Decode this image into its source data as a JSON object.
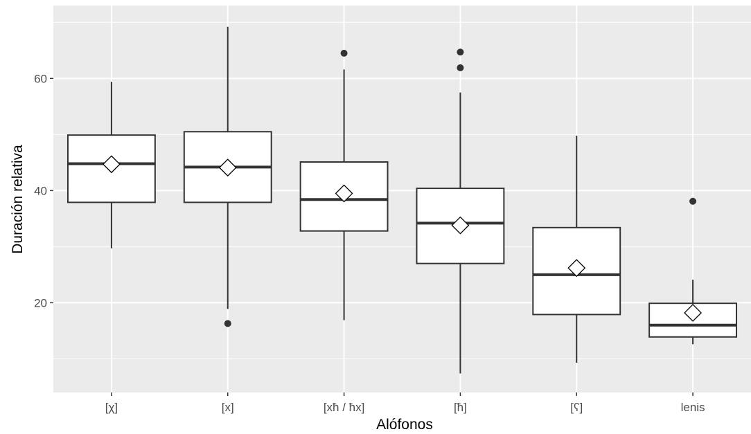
{
  "chart_data": {
    "type": "boxplot",
    "xlabel": "Alófonos",
    "ylabel": "Duración relativa",
    "ylim": [
      4,
      73
    ],
    "yticks": [
      20,
      40,
      60
    ],
    "grid": true,
    "legend": "none",
    "colors": {
      "panel": "#ebebeb",
      "grid": "#ffffff",
      "box_fill": "#ffffff",
      "line": "#333333"
    },
    "categories": [
      "[χ]",
      "[x]",
      "[xħ / ħx]",
      "[ħ]",
      "[ʕ]",
      "lenis"
    ],
    "boxes": [
      {
        "category": "[χ]",
        "whisker_low": 29.7,
        "q1": 37.9,
        "median": 44.8,
        "q3": 49.9,
        "whisker_high": 59.4,
        "mean": 44.7,
        "outliers": []
      },
      {
        "category": "[x]",
        "whisker_low": 18.9,
        "q1": 37.9,
        "median": 44.2,
        "q3": 50.5,
        "whisker_high": 69.2,
        "mean": 44.1,
        "outliers": [
          16.3
        ]
      },
      {
        "category": "[xħ / ħx]",
        "whisker_low": 16.9,
        "q1": 32.8,
        "median": 38.4,
        "q3": 45.1,
        "whisker_high": 61.6,
        "mean": 39.5,
        "outliers": [
          64.5
        ]
      },
      {
        "category": "[ħ]",
        "whisker_low": 7.4,
        "q1": 27.0,
        "median": 34.2,
        "q3": 40.4,
        "whisker_high": 57.5,
        "mean": 33.8,
        "outliers": [
          61.9,
          64.7
        ]
      },
      {
        "category": "[ʕ]",
        "whisker_low": 9.3,
        "q1": 17.9,
        "median": 25.0,
        "q3": 33.4,
        "whisker_high": 49.8,
        "mean": 26.2,
        "outliers": []
      },
      {
        "category": "lenis",
        "whisker_low": 12.6,
        "q1": 13.9,
        "median": 16.0,
        "q3": 19.9,
        "whisker_high": 24.1,
        "mean": 18.2,
        "outliers": [
          38.1
        ]
      }
    ]
  }
}
